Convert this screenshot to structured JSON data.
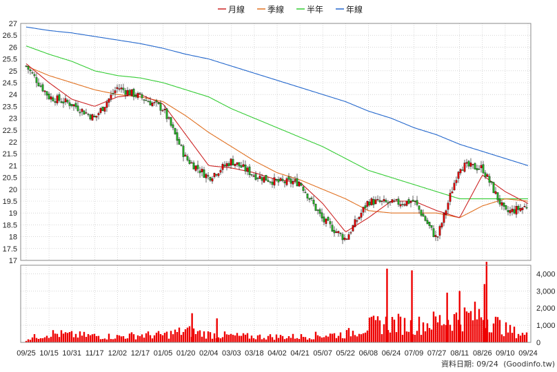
{
  "chart_data": {
    "type": "candlestick",
    "legend": [
      {
        "name": "月線",
        "color": "#cc2222"
      },
      {
        "name": "季線",
        "color": "#e07020"
      },
      {
        "name": "半年",
        "color": "#33cc33"
      },
      {
        "name": "年線",
        "color": "#2266cc"
      }
    ],
    "legend_placement": "top-center",
    "price_axis": {
      "min": 17,
      "max": 27,
      "step": 0.5,
      "grid": true,
      "tick_labels": [
        "17",
        "17.5",
        "18",
        "18.5",
        "19",
        "19.5",
        "20",
        "20.5",
        "21",
        "21.5",
        "22",
        "22.5",
        "23",
        "23.5",
        "24",
        "24.5",
        "25",
        "25.5",
        "26",
        "26.5",
        "27"
      ]
    },
    "volume_axis": {
      "min": 0,
      "max": 4500,
      "tick_values": [
        0,
        1000,
        2000,
        3000,
        4000
      ],
      "tick_labels": [
        "0",
        "1,000",
        "2,000",
        "3,000",
        "4,000"
      ]
    },
    "x_tick_labels": [
      "09/25",
      "10/15",
      "10/31",
      "11/17",
      "12/02",
      "12/17",
      "01/05",
      "01/20",
      "02/04",
      "03/03",
      "03/18",
      "04/02",
      "04/21",
      "05/07",
      "05/22",
      "06/08",
      "06/24",
      "07/09",
      "07/27",
      "08/11",
      "08/26",
      "09/10",
      "09/24"
    ],
    "colors": {
      "up": "#dd0000",
      "down": "#22aa22",
      "volume": "#ee0000",
      "grid": "#bbbbbb",
      "frame": "#888888"
    },
    "price_anchors": [
      {
        "label": "09/25",
        "close": 25.2
      },
      {
        "label": "10/15",
        "close": 23.9
      },
      {
        "label": "10/31",
        "close": 23.6
      },
      {
        "label": "11/17",
        "close": 23.0
      },
      {
        "label": "12/02",
        "close": 24.3
      },
      {
        "label": "12/17",
        "close": 23.9
      },
      {
        "label": "01/05",
        "close": 23.4
      },
      {
        "label": "01/20",
        "close": 21.3
      },
      {
        "label": "02/04",
        "close": 20.5
      },
      {
        "label": "03/03",
        "close": 21.2
      },
      {
        "label": "03/18",
        "close": 20.6
      },
      {
        "label": "04/02",
        "close": 20.3
      },
      {
        "label": "04/21",
        "close": 20.3
      },
      {
        "label": "05/07",
        "close": 18.7
      },
      {
        "label": "05/22",
        "close": 17.9
      },
      {
        "label": "06/08",
        "close": 19.5
      },
      {
        "label": "06/24",
        "close": 19.4
      },
      {
        "label": "07/09",
        "close": 19.5
      },
      {
        "label": "07/27",
        "close": 17.9
      },
      {
        "label": "08/11",
        "close": 21.0
      },
      {
        "label": "08/26",
        "close": 20.9
      },
      {
        "label": "09/10",
        "close": 19.0
      },
      {
        "label": "09/24",
        "close": 19.3
      }
    ],
    "ma_month": [
      {
        "label": "09/25",
        "v": 25.3
      },
      {
        "label": "10/15",
        "v": 24.5
      },
      {
        "label": "10/31",
        "v": 23.8
      },
      {
        "label": "11/17",
        "v": 23.5
      },
      {
        "label": "12/02",
        "v": 23.9
      },
      {
        "label": "12/17",
        "v": 24.0
      },
      {
        "label": "01/05",
        "v": 23.6
      },
      {
        "label": "01/20",
        "v": 22.3
      },
      {
        "label": "02/04",
        "v": 21.0
      },
      {
        "label": "03/03",
        "v": 20.9
      },
      {
        "label": "03/18",
        "v": 20.7
      },
      {
        "label": "04/02",
        "v": 20.4
      },
      {
        "label": "04/21",
        "v": 20.3
      },
      {
        "label": "05/07",
        "v": 19.4
      },
      {
        "label": "05/22",
        "v": 18.2
      },
      {
        "label": "06/08",
        "v": 18.8
      },
      {
        "label": "06/24",
        "v": 19.5
      },
      {
        "label": "07/09",
        "v": 19.5
      },
      {
        "label": "07/27",
        "v": 19.1
      },
      {
        "label": "08/11",
        "v": 18.8
      },
      {
        "label": "08/26",
        "v": 20.6
      },
      {
        "label": "09/10",
        "v": 19.9
      },
      {
        "label": "09/24",
        "v": 19.4
      }
    ],
    "ma_quarter": [
      {
        "label": "09/25",
        "v": 25.2
      },
      {
        "label": "10/15",
        "v": 24.8
      },
      {
        "label": "10/31",
        "v": 24.5
      },
      {
        "label": "11/17",
        "v": 24.2
      },
      {
        "label": "12/02",
        "v": 24.0
      },
      {
        "label": "12/17",
        "v": 23.9
      },
      {
        "label": "01/05",
        "v": 23.7
      },
      {
        "label": "01/20",
        "v": 23.1
      },
      {
        "label": "02/04",
        "v": 22.4
      },
      {
        "label": "03/03",
        "v": 21.8
      },
      {
        "label": "03/18",
        "v": 21.2
      },
      {
        "label": "04/02",
        "v": 20.7
      },
      {
        "label": "04/21",
        "v": 20.4
      },
      {
        "label": "05/07",
        "v": 20.0
      },
      {
        "label": "05/22",
        "v": 19.6
      },
      {
        "label": "06/08",
        "v": 19.1
      },
      {
        "label": "06/24",
        "v": 19.0
      },
      {
        "label": "07/09",
        "v": 19.0
      },
      {
        "label": "07/27",
        "v": 19.0
      },
      {
        "label": "08/11",
        "v": 18.8
      },
      {
        "label": "08/26",
        "v": 19.3
      },
      {
        "label": "09/10",
        "v": 19.6
      },
      {
        "label": "09/24",
        "v": 19.5
      }
    ],
    "ma_half": [
      {
        "label": "09/25",
        "v": 26.05
      },
      {
        "label": "10/15",
        "v": 25.7
      },
      {
        "label": "10/31",
        "v": 25.4
      },
      {
        "label": "11/17",
        "v": 25.0
      },
      {
        "label": "12/02",
        "v": 24.8
      },
      {
        "label": "12/17",
        "v": 24.7
      },
      {
        "label": "01/05",
        "v": 24.5
      },
      {
        "label": "01/20",
        "v": 24.2
      },
      {
        "label": "02/04",
        "v": 23.9
      },
      {
        "label": "03/03",
        "v": 23.4
      },
      {
        "label": "03/18",
        "v": 23.0
      },
      {
        "label": "04/02",
        "v": 22.6
      },
      {
        "label": "04/21",
        "v": 22.2
      },
      {
        "label": "05/07",
        "v": 21.8
      },
      {
        "label": "05/22",
        "v": 21.3
      },
      {
        "label": "06/08",
        "v": 20.8
      },
      {
        "label": "06/24",
        "v": 20.5
      },
      {
        "label": "07/09",
        "v": 20.2
      },
      {
        "label": "07/27",
        "v": 19.9
      },
      {
        "label": "08/11",
        "v": 19.6
      },
      {
        "label": "08/26",
        "v": 19.6
      },
      {
        "label": "09/10",
        "v": 19.6
      },
      {
        "label": "09/24",
        "v": 19.6
      }
    ],
    "ma_year": [
      {
        "label": "09/25",
        "v": 26.85
      },
      {
        "label": "10/15",
        "v": 26.7
      },
      {
        "label": "10/31",
        "v": 26.6
      },
      {
        "label": "11/17",
        "v": 26.45
      },
      {
        "label": "12/02",
        "v": 26.3
      },
      {
        "label": "12/17",
        "v": 26.15
      },
      {
        "label": "01/05",
        "v": 25.95
      },
      {
        "label": "01/20",
        "v": 25.7
      },
      {
        "label": "02/04",
        "v": 25.5
      },
      {
        "label": "03/03",
        "v": 25.2
      },
      {
        "label": "03/18",
        "v": 24.9
      },
      {
        "label": "04/02",
        "v": 24.6
      },
      {
        "label": "04/21",
        "v": 24.3
      },
      {
        "label": "05/07",
        "v": 24.0
      },
      {
        "label": "05/22",
        "v": 23.7
      },
      {
        "label": "06/08",
        "v": 23.3
      },
      {
        "label": "06/24",
        "v": 23.0
      },
      {
        "label": "07/09",
        "v": 22.6
      },
      {
        "label": "07/27",
        "v": 22.3
      },
      {
        "label": "08/11",
        "v": 21.9
      },
      {
        "label": "08/26",
        "v": 21.6
      },
      {
        "label": "09/10",
        "v": 21.3
      },
      {
        "label": "09/24",
        "v": 21.0
      }
    ],
    "volume_anchors": [
      {
        "label": "09/25",
        "v": 200
      },
      {
        "label": "10/15",
        "v": 550
      },
      {
        "label": "10/31",
        "v": 450
      },
      {
        "label": "11/17",
        "v": 400
      },
      {
        "label": "12/02",
        "v": 350
      },
      {
        "label": "12/17",
        "v": 450
      },
      {
        "label": "01/05",
        "v": 450
      },
      {
        "label": "01/20",
        "v": 700
      },
      {
        "label": "02/04",
        "v": 500
      },
      {
        "label": "03/03",
        "v": 400
      },
      {
        "label": "03/18",
        "v": 350
      },
      {
        "label": "04/02",
        "v": 350
      },
      {
        "label": "04/21",
        "v": 350
      },
      {
        "label": "05/07",
        "v": 450
      },
      {
        "label": "05/22",
        "v": 500
      },
      {
        "label": "06/08",
        "v": 1000
      },
      {
        "label": "06/24",
        "v": 1200
      },
      {
        "label": "07/09",
        "v": 1000
      },
      {
        "label": "07/27",
        "v": 1300
      },
      {
        "label": "08/11",
        "v": 1500
      },
      {
        "label": "08/26",
        "v": 1700
      },
      {
        "label": "09/10",
        "v": 800
      },
      {
        "label": "09/24",
        "v": 400
      }
    ],
    "volume_spikes": [
      {
        "label": "06/24",
        "v": 4300
      },
      {
        "label": "07/09",
        "v": 4200
      },
      {
        "label": "08/11",
        "v": 3000
      },
      {
        "label": "08/26",
        "v": 3400
      },
      {
        "label": "08/26",
        "v": 4700
      },
      {
        "label": "01/20",
        "v": 1700
      },
      {
        "label": "02/04",
        "v": 1400
      },
      {
        "label": "07/27",
        "v": 2900
      }
    ]
  },
  "footer": {
    "date_label": "資料日期: 09/24",
    "source": "(Goodinfo.tw)"
  }
}
